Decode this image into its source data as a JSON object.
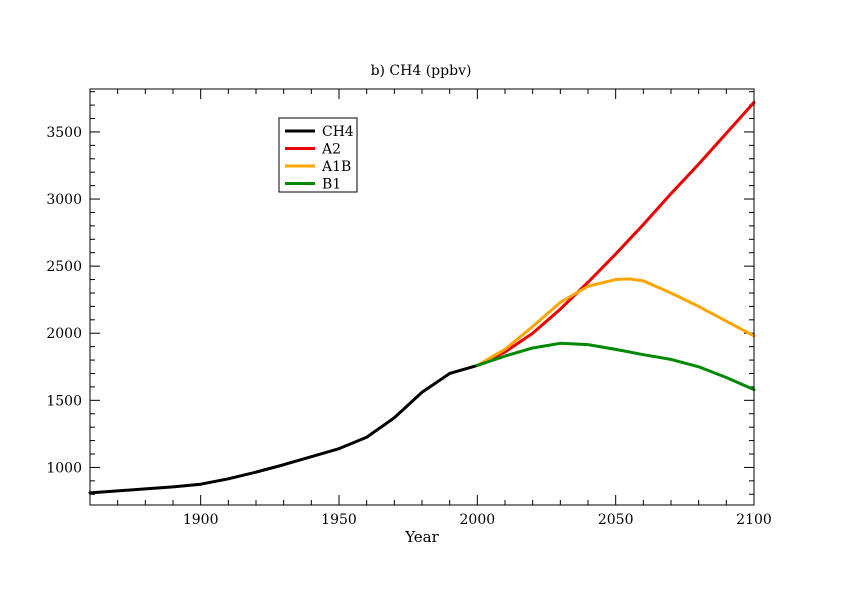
{
  "chart_data": {
    "type": "line",
    "title": "b) CH4 (ppbv)",
    "xlabel": "Year",
    "ylabel": "",
    "xlim": [
      1860,
      2100
    ],
    "ylim": [
      720,
      3820
    ],
    "x_ticks": [
      1900,
      1950,
      2000,
      2050,
      2100
    ],
    "y_ticks": [
      1000,
      1500,
      2000,
      2500,
      3000,
      3500
    ],
    "grid": false,
    "legend_position": "top-left",
    "series": [
      {
        "name": "CH4",
        "color": "#000000",
        "points": [
          [
            1860,
            810
          ],
          [
            1870,
            825
          ],
          [
            1880,
            840
          ],
          [
            1890,
            855
          ],
          [
            1900,
            875
          ],
          [
            1910,
            915
          ],
          [
            1920,
            965
          ],
          [
            1930,
            1020
          ],
          [
            1940,
            1080
          ],
          [
            1950,
            1140
          ],
          [
            1960,
            1225
          ],
          [
            1970,
            1370
          ],
          [
            1980,
            1560
          ],
          [
            1990,
            1700
          ],
          [
            2000,
            1760
          ]
        ]
      },
      {
        "name": "A2",
        "color": "#ee0000",
        "points": [
          [
            2000,
            1760
          ],
          [
            2010,
            1860
          ],
          [
            2020,
            2000
          ],
          [
            2030,
            2180
          ],
          [
            2040,
            2380
          ],
          [
            2050,
            2590
          ],
          [
            2060,
            2810
          ],
          [
            2070,
            3040
          ],
          [
            2080,
            3260
          ],
          [
            2090,
            3490
          ],
          [
            2100,
            3720
          ]
        ]
      },
      {
        "name": "A1B",
        "color": "#ffa500",
        "points": [
          [
            2000,
            1760
          ],
          [
            2010,
            1880
          ],
          [
            2020,
            2050
          ],
          [
            2030,
            2230
          ],
          [
            2040,
            2350
          ],
          [
            2050,
            2400
          ],
          [
            2055,
            2405
          ],
          [
            2060,
            2390
          ],
          [
            2070,
            2300
          ],
          [
            2080,
            2200
          ],
          [
            2090,
            2090
          ],
          [
            2100,
            1980
          ]
        ]
      },
      {
        "name": "B1",
        "color": "#008800",
        "points": [
          [
            2000,
            1760
          ],
          [
            2010,
            1830
          ],
          [
            2020,
            1890
          ],
          [
            2030,
            1925
          ],
          [
            2040,
            1915
          ],
          [
            2050,
            1880
          ],
          [
            2060,
            1840
          ],
          [
            2070,
            1805
          ],
          [
            2080,
            1750
          ],
          [
            2090,
            1670
          ],
          [
            2100,
            1580
          ]
        ]
      }
    ]
  }
}
